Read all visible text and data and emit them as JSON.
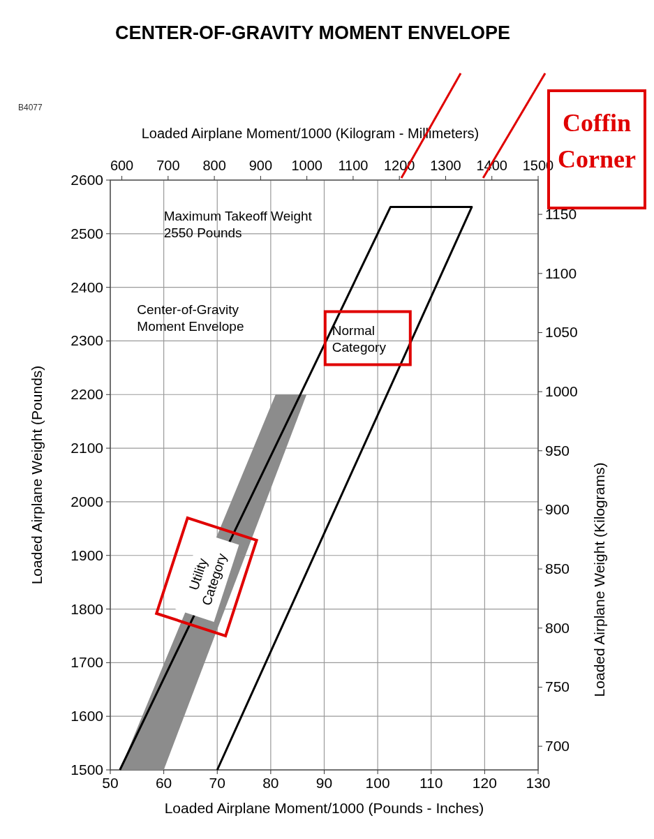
{
  "chart_data": {
    "type": "line",
    "title": "CENTER-OF-GRAVITY MOMENT ENVELOPE",
    "xlabel": "Loaded Airplane Moment/1000 (Pounds - Inches)",
    "x2label": "Loaded Airplane Moment/1000 (Kilogram - Millimeters)",
    "ylabel": "Loaded Airplane Weight (Pounds)",
    "y2label": "Loaded Airplane Weight (Kilograms)",
    "xlim": [
      50,
      130
    ],
    "xticks": [
      50,
      60,
      70,
      80,
      90,
      100,
      110,
      120,
      130
    ],
    "x2lim": [
      575,
      1500
    ],
    "x2ticks": [
      600,
      700,
      800,
      900,
      1000,
      1100,
      1200,
      1300,
      1400,
      1500
    ],
    "ylim": [
      1500,
      2600
    ],
    "yticks": [
      1500,
      1600,
      1700,
      1800,
      1900,
      2000,
      2100,
      2200,
      2300,
      2400,
      2500,
      2600
    ],
    "y2lim": [
      680,
      1179
    ],
    "y2ticks": [
      700,
      750,
      800,
      850,
      900,
      950,
      1000,
      1050,
      1100,
      1150
    ],
    "grid": true,
    "series": [
      {
        "type": "area",
        "color": "#8c8c8c",
        "x": [
          51.8,
          80.9,
          86.7,
          60
        ],
        "values": [
          1500,
          2200,
          2200,
          1500
        ]
      },
      {
        "color": "#000000",
        "x": [
          51.8,
          102.4,
          117.6,
          70
        ],
        "values": [
          1500,
          2550,
          2550,
          1500
        ]
      }
    ],
    "annotations": [
      "B4077",
      "Maximum Takeoff Weight\n2550 Pounds",
      "Center-of-Gravity\nMoment Envelope",
      "Normal\nCategory",
      "Utility\nCategory",
      "Coffin\nCorner"
    ]
  }
}
